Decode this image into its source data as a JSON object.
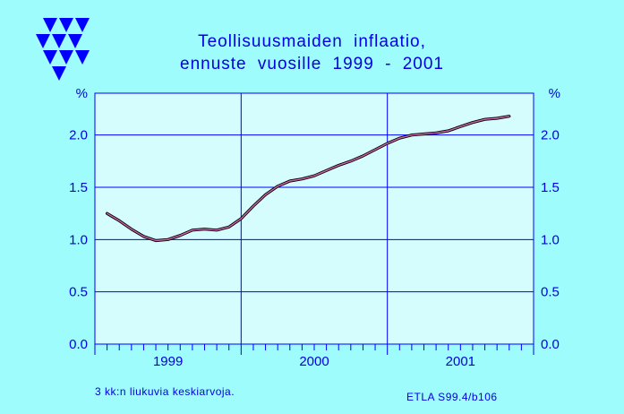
{
  "header": {
    "title_line1": "Teollisuusmaiden  inflaatio,",
    "title_line2": "ennuste  vuosille  1999 - 2001"
  },
  "footer": {
    "note": "3 kk:n liukuvia keskiarvoja.",
    "source": "ETLA S99.4/b106"
  },
  "colors": {
    "background": "#9ffcfc",
    "plot_background": "#d6fdfd",
    "text": "#0000e0",
    "grid": "#0000ff",
    "line": "#cc66aa",
    "line_shadow": "#000000",
    "logo": "#0000ff"
  },
  "chart_data": {
    "type": "line",
    "title": "Teollisuusmaiden  inflaatio, ennuste  vuosille  1999 - 2001",
    "xlabel": "",
    "ylabel": "%",
    "ylabel_right": "%",
    "ylim": [
      0,
      2.4
    ],
    "yticks": [
      "0.0",
      "0.5",
      "1.0",
      "1.5",
      "2.0"
    ],
    "year_labels": [
      "1999",
      "2000",
      "2001"
    ],
    "grid": true,
    "series": [
      {
        "values": [
          1.25,
          1.18,
          1.1,
          1.03,
          0.99,
          1.0,
          1.04,
          1.09,
          1.1,
          1.09,
          1.12,
          1.2,
          1.32,
          1.43,
          1.51,
          1.56,
          1.58,
          1.61,
          1.66,
          1.71,
          1.75,
          1.8,
          1.86,
          1.92,
          1.97,
          2.0,
          2.01,
          2.02,
          2.04,
          2.08,
          2.12,
          2.15,
          2.16,
          2.18
        ]
      }
    ]
  }
}
